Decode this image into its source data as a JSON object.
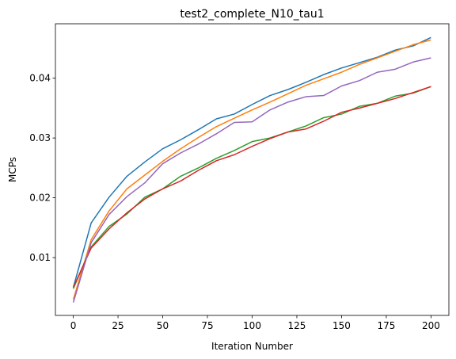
{
  "chart_data": {
    "type": "line",
    "title": "test2_complete_N10_tau1",
    "xlabel": "Iteration Number",
    "ylabel": "MCPs",
    "x": [
      0,
      10,
      20,
      30,
      40,
      50,
      60,
      70,
      80,
      90,
      100,
      110,
      120,
      130,
      140,
      150,
      160,
      170,
      180,
      190,
      200
    ],
    "series": [
      {
        "color": "#1f77b4",
        "values": [
          0.005,
          0.0158,
          0.0201,
          0.0236,
          0.026,
          0.0282,
          0.0297,
          0.0314,
          0.0332,
          0.034,
          0.0356,
          0.0371,
          0.0381,
          0.0393,
          0.0406,
          0.0417,
          0.0426,
          0.0435,
          0.0447,
          0.0454,
          0.0468
        ]
      },
      {
        "color": "#ff7f0e",
        "values": [
          0.003,
          0.013,
          0.0178,
          0.0215,
          0.0238,
          0.0261,
          0.0282,
          0.0301,
          0.0319,
          0.0333,
          0.0347,
          0.036,
          0.0374,
          0.0388,
          0.0399,
          0.041,
          0.0423,
          0.0434,
          0.0445,
          0.0456,
          0.0464
        ]
      },
      {
        "color": "#2ca02c",
        "values": [
          0.0048,
          0.0118,
          0.0152,
          0.0173,
          0.0201,
          0.0215,
          0.0236,
          0.025,
          0.0266,
          0.0279,
          0.0294,
          0.03,
          0.031,
          0.032,
          0.0334,
          0.034,
          0.0353,
          0.0358,
          0.037,
          0.0375,
          0.0386
        ]
      },
      {
        "color": "#d62728",
        "values": [
          0.005,
          0.0116,
          0.0148,
          0.0175,
          0.0198,
          0.0215,
          0.0228,
          0.0246,
          0.0262,
          0.0272,
          0.0286,
          0.0299,
          0.031,
          0.0315,
          0.0328,
          0.0343,
          0.035,
          0.0358,
          0.0366,
          0.0376,
          0.0386
        ]
      },
      {
        "color": "#9467bd",
        "values": [
          0.0025,
          0.0125,
          0.0172,
          0.0202,
          0.0225,
          0.0257,
          0.0275,
          0.029,
          0.0307,
          0.0326,
          0.0327,
          0.0347,
          0.036,
          0.0369,
          0.0371,
          0.0387,
          0.0396,
          0.041,
          0.0415,
          0.0427,
          0.0434
        ]
      }
    ],
    "xlim": [
      -10,
      210
    ],
    "xticks": [
      0,
      25,
      50,
      75,
      100,
      125,
      150,
      175,
      200
    ],
    "ylim": [
      0.00033,
      0.0491
    ],
    "yticks": [
      0.01,
      0.02,
      0.03,
      0.04
    ]
  }
}
